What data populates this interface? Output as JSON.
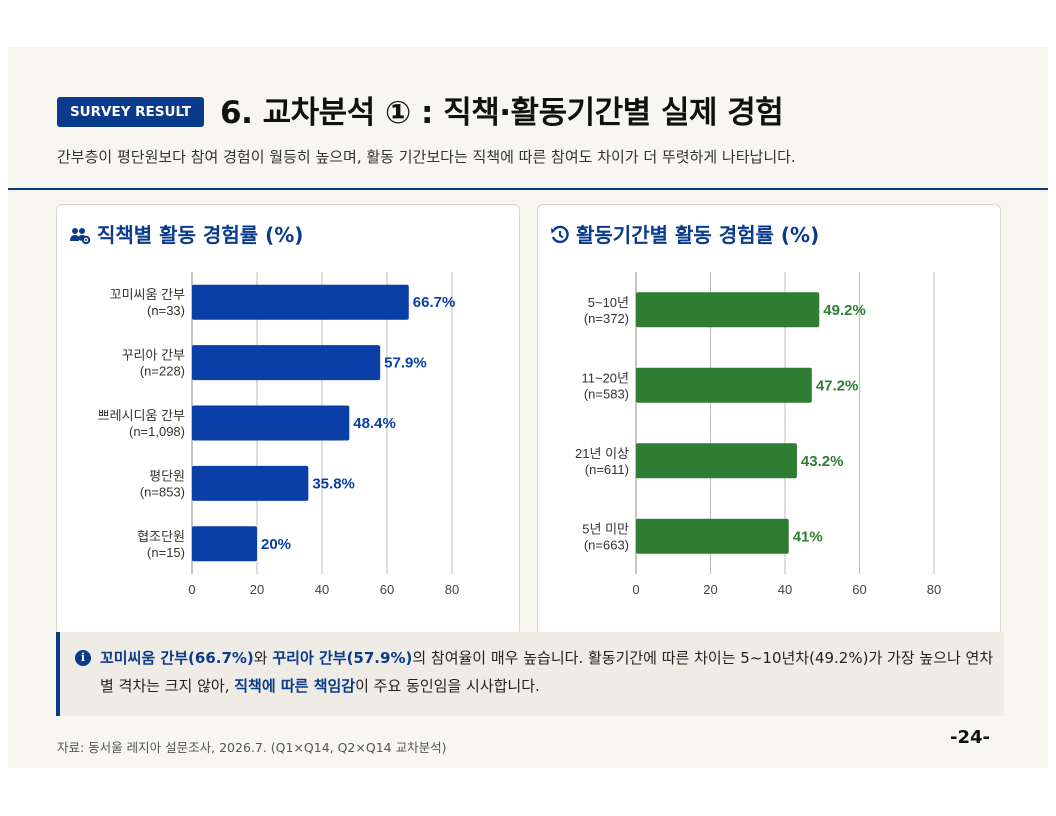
{
  "header": {
    "badge": "SURVEY RESULT",
    "title": "6. 교차분석 ① : 직책·활동기간별 실제 경험",
    "subtitle": "간부층이 평단원보다 참여 경험이 월등히 높으며, 활동 기간보다는 직책에 따른 참여도 차이가 더 뚜렷하게 나타납니다."
  },
  "colors": {
    "accent": "#0a3a8c",
    "bar_blue": "#0a3fa8",
    "bar_green": "#2e7d32"
  },
  "chart_data": [
    {
      "type": "bar",
      "orientation": "horizontal",
      "title": "직책별 활동 경험률 (%)",
      "icon": "users-gear-icon",
      "categories": [
        {
          "label": "꼬미씨움 간부",
          "n": "(n=33)"
        },
        {
          "label": "꾸리아 간부",
          "n": "(n=228)"
        },
        {
          "label": "쁘레시디움 간부",
          "n": "(n=1,098)"
        },
        {
          "label": "평단원",
          "n": "(n=853)"
        },
        {
          "label": "협조단원",
          "n": "(n=15)"
        }
      ],
      "values": [
        66.7,
        57.9,
        48.4,
        35.8,
        20
      ],
      "value_labels": [
        "66.7%",
        "57.9%",
        "48.4%",
        "35.8%",
        "20%"
      ],
      "xlim": [
        0,
        80
      ],
      "ticks": [
        0,
        20,
        40,
        60,
        80
      ],
      "grid": true,
      "color": "#0a3fa8"
    },
    {
      "type": "bar",
      "orientation": "horizontal",
      "title": "활동기간별 활동 경험률 (%)",
      "icon": "history-icon",
      "categories": [
        {
          "label": "5~10년",
          "n": "(n=372)"
        },
        {
          "label": "11~20년",
          "n": "(n=583)"
        },
        {
          "label": "21년 이상",
          "n": "(n=611)"
        },
        {
          "label": "5년 미만",
          "n": "(n=663)"
        }
      ],
      "values": [
        49.2,
        47.2,
        43.2,
        41
      ],
      "value_labels": [
        "49.2%",
        "47.2%",
        "43.2%",
        "41%"
      ],
      "xlim": [
        0,
        80
      ],
      "ticks": [
        0,
        20,
        40,
        60,
        80
      ],
      "grid": true,
      "color": "#2e7d32"
    }
  ],
  "note": {
    "icon": "info-icon",
    "part1": "꼬미씨움 간부(66.7%)",
    "part2": "와 ",
    "part3": "꾸리아 간부(57.9%)",
    "part4": "의 참여율이 매우 높습니다. 활동기간에 따른 차이는 5~10년차(49.2%)가 가장 높으나 연차별 격차는 크지 않아, ",
    "part5": "직책에 따른 책임감",
    "part6": "이 주요 동인임을 시사합니다."
  },
  "footer": {
    "source": "자료: 동서울 레지아 설문조사, 2026.7. (Q1×Q14, Q2×Q14 교차분석)",
    "page": "-24-"
  }
}
